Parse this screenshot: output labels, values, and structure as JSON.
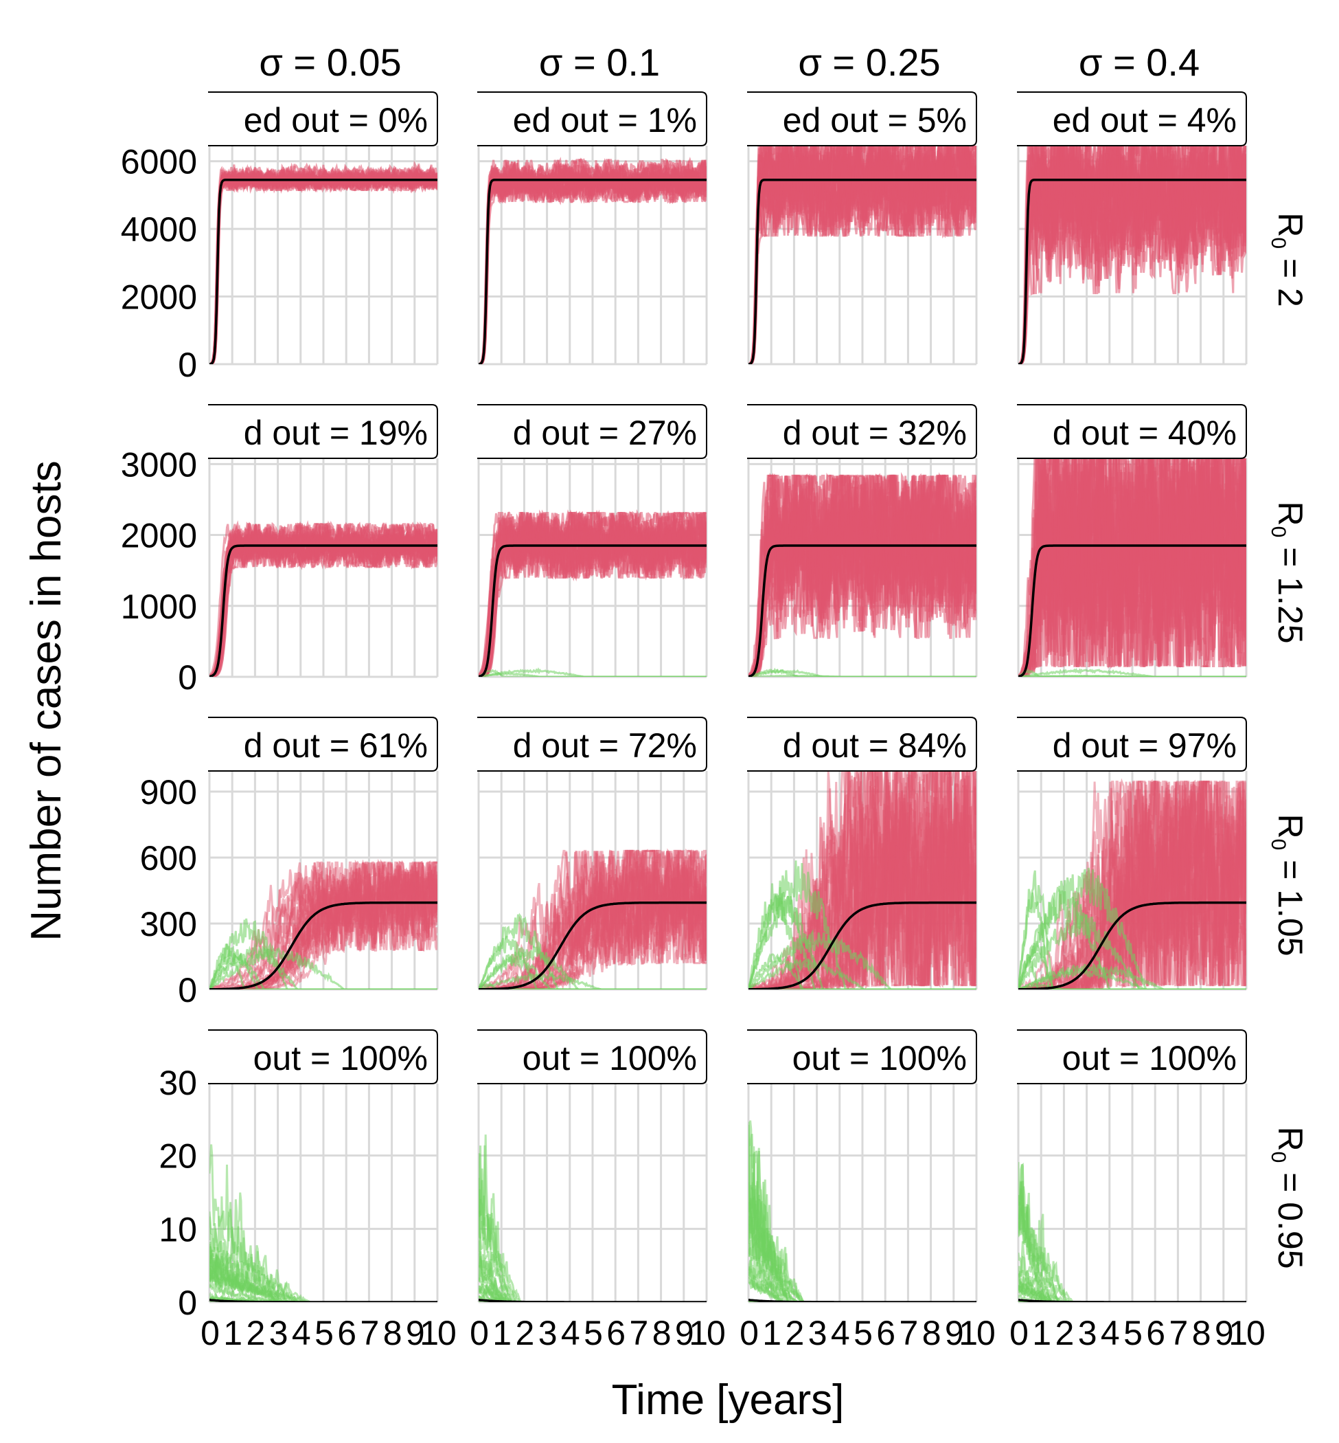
{
  "chart_data": {
    "type": "line",
    "facet": "grid 4x4",
    "ylabel": "Number of cases in hosts",
    "xlabel": "Time [years]",
    "x_ticks": [
      "0",
      "1",
      "2",
      "3",
      "4",
      "5",
      "6",
      "7",
      "8",
      "9",
      "10"
    ],
    "xlim": [
      0,
      10
    ],
    "col_labels": [
      "σ =  0.05",
      "σ =  0.1",
      "σ =  0.25",
      "σ =  0.4"
    ],
    "row_labels": [
      {
        "prefix": "R",
        "sub": "0",
        "suffix": " = 2"
      },
      {
        "prefix": "R",
        "sub": "0",
        "suffix": " = 1.25"
      },
      {
        "prefix": "R",
        "sub": "0",
        "suffix": " = 1.05"
      },
      {
        "prefix": "R",
        "sub": "0",
        "suffix": " = 0.95"
      }
    ],
    "rows": [
      {
        "ylim": [
          0,
          6500
        ],
        "yticks": [
          "0",
          "2000",
          "4000",
          "6000"
        ],
        "yticks_values": [
          0,
          2000,
          4000,
          6000
        ],
        "deterministic": {
          "equilibrium": 5450,
          "midpoint": 0.35,
          "width": 0.045
        },
        "panels": [
          {
            "banner": "ed out = 0%",
            "fade_out_pct": 0,
            "band_low": 5250,
            "band_high": 5650,
            "min_dip": 5150
          },
          {
            "banner": "ed out = 1%",
            "fade_out_pct": 1,
            "band_low": 5000,
            "band_high": 5750,
            "min_dip": 4800
          },
          {
            "banner": "ed out = 5%",
            "fade_out_pct": 5,
            "band_low": 4300,
            "band_high": 6500,
            "min_dip": 3800
          },
          {
            "banner": "ed out = 4%",
            "fade_out_pct": 4,
            "band_low": 3500,
            "band_high": 6500,
            "min_dip": 2100
          }
        ]
      },
      {
        "ylim": [
          0,
          3100
        ],
        "yticks": [
          "0",
          "1000",
          "2000",
          "3000"
        ],
        "yticks_values": [
          0,
          1000,
          2000,
          3000
        ],
        "deterministic": {
          "equilibrium": 1850,
          "midpoint": 0.6,
          "width": 0.1
        },
        "panels": [
          {
            "banner": "d out = 19%",
            "fade_out_pct": 19,
            "band_low": 1650,
            "band_high": 2050,
            "min_dip": 1550
          },
          {
            "banner": "d out = 27%",
            "fade_out_pct": 27,
            "band_low": 1550,
            "band_high": 2200,
            "min_dip": 1400
          },
          {
            "banner": "d out = 32%",
            "fade_out_pct": 32,
            "band_low": 1100,
            "band_high": 2700,
            "min_dip": 550
          },
          {
            "banner": "d out = 40%",
            "fade_out_pct": 40,
            "band_low": 500,
            "band_high": 3100,
            "min_dip": 150
          }
        ]
      },
      {
        "ylim": [
          0,
          1000
        ],
        "yticks": [
          "0",
          "300",
          "600",
          "900"
        ],
        "yticks_values": [
          0,
          300,
          600,
          900
        ],
        "deterministic": {
          "equilibrium": 395,
          "midpoint": 3.6,
          "width": 0.55
        },
        "panels": [
          {
            "banner": "d out = 61%",
            "fade_out_pct": 61,
            "band_low": 250,
            "band_high": 550,
            "min_dip": 180
          },
          {
            "banner": "d out = 72%",
            "fade_out_pct": 72,
            "band_low": 200,
            "band_high": 600,
            "min_dip": 120
          },
          {
            "banner": "d out = 84%",
            "fade_out_pct": 84,
            "band_low": 50,
            "band_high": 950,
            "min_dip": 20
          },
          {
            "banner": "d out = 97%",
            "fade_out_pct": 97,
            "band_low": 80,
            "band_high": 900,
            "min_dip": 20
          }
        ]
      },
      {
        "ylim": [
          0,
          30
        ],
        "yticks": [
          "0",
          "10",
          "20",
          "30"
        ],
        "yticks_values": [
          0,
          10,
          20,
          30
        ],
        "deterministic": {
          "equilibrium": 0,
          "initial": 0.3,
          "decay": 0.9
        },
        "panels": [
          {
            "banner": "out = 100%",
            "fade_out_pct": 100,
            "green_peak": 18,
            "green_end": 4.5
          },
          {
            "banner": "out = 100%",
            "fade_out_pct": 100,
            "green_peak": 20,
            "green_end": 2
          },
          {
            "banner": "out = 100%",
            "fade_out_pct": 100,
            "green_peak": 25,
            "green_end": 2.7
          },
          {
            "banner": "out = 100%",
            "fade_out_pct": 100,
            "green_peak": 19,
            "green_end": 2.5
          }
        ]
      }
    ],
    "colors": {
      "persisting": "#e0566f",
      "faded": "#6fd160",
      "deterministic": "#000000",
      "grid": "#d9d9d9"
    },
    "grid": true
  }
}
